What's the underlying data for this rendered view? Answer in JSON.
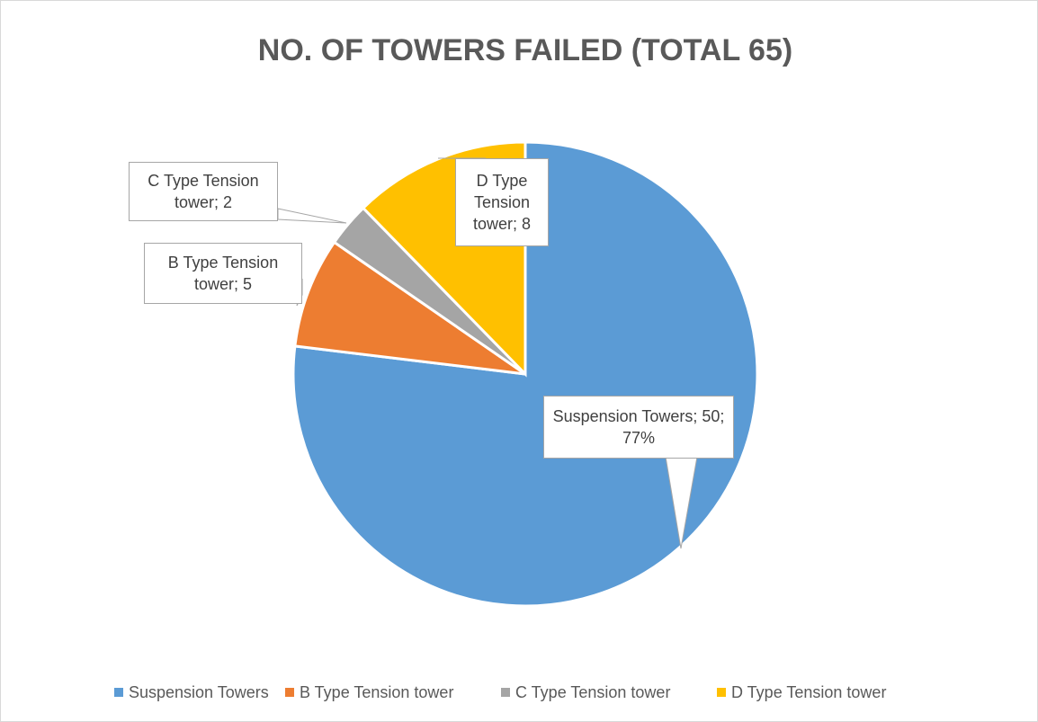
{
  "chart_data": {
    "type": "pie",
    "title": "NO. OF TOWERS FAILED (TOTAL 65)",
    "categories": [
      "Suspension Towers",
      "B Type Tension tower",
      "C Type Tension tower",
      "D Type Tension tower"
    ],
    "values": [
      50,
      5,
      2,
      8
    ],
    "value_labels": [
      "Suspension Towers; 50; 77%",
      "B Type Tension tower; 5",
      "C Type Tension tower; 2",
      "D Type Tension tower; 8"
    ],
    "colors": [
      "#5b9bd5",
      "#ed7d31",
      "#a5a5a5",
      "#ffc000"
    ],
    "legend": "bottom"
  }
}
